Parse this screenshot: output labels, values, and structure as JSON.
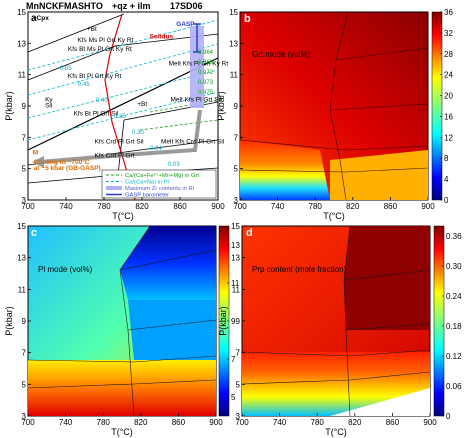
{
  "figure": {
    "header": {
      "system": "MnNCKFMASHTO",
      "phases": "+qz + ilm",
      "sample": "17SD06"
    }
  },
  "chart_data": [
    {
      "type": "diagram",
      "panel": "a",
      "xlabel": "T(°C)",
      "ylabel": "P(kbar)",
      "xlim": [
        700,
        900
      ],
      "ylim": [
        3,
        15
      ],
      "xticks": [
        "700",
        "740",
        "780",
        "820",
        "860",
        "900"
      ],
      "yticks": [
        "3",
        "5",
        "7",
        "9",
        "11",
        "13",
        "15"
      ],
      "field_labels": [
        {
          "text": "Kfs Ms Pl Grt Ky Rt",
          "x": 752,
          "y": 13.1
        },
        {
          "text": "Kfs Bt Ms Pl Grt Ky Rt",
          "x": 742,
          "y": 12.5
        },
        {
          "text": "Kfs Bt Pl Grt Ky Rt",
          "x": 742,
          "y": 10.8
        },
        {
          "text": "Kfs Bt Pl Grt Sil",
          "x": 748,
          "y": 8.4
        },
        {
          "text": "Melt Kfs Pl Grt Ky Rt",
          "x": 848,
          "y": 11.6
        },
        {
          "text": "Melt Kfs Pl Grt Sil",
          "x": 850,
          "y": 9.3
        },
        {
          "text": "Melt Kfs Crd Pl Grt Sil",
          "x": 840,
          "y": 6.6
        },
        {
          "text": "Kfs Crd Pl Grt Sil",
          "x": 770,
          "y": 6.6
        },
        {
          "text": "Kfs Crd Pl Grt",
          "x": 770,
          "y": 5.7
        },
        {
          "text": "+Bt",
          "x": 762,
          "y": 13.8
        },
        {
          "text": "+Bt",
          "x": 815,
          "y": 9.0
        },
        {
          "text": "Ky",
          "x": 718,
          "y": 9.3
        },
        {
          "text": "Sil",
          "x": 718,
          "y": 8.9
        }
      ],
      "annotations": [
        {
          "text": "+Cpx",
          "x": 705,
          "y": 14.5
        },
        {
          "text": "Solidus",
          "x": 828,
          "y": 13.3
        },
        {
          "text": "GASP",
          "x": 856,
          "y": 14.1
        },
        {
          "text": "M",
          "x": 705,
          "y": 5.9
        },
        {
          "text": "Cooling to ~700°C",
          "x": 706,
          "y": 5.3
        },
        {
          "text": "at ~5 kbar (GB-GASP)",
          "x": 706,
          "y": 4.9
        }
      ],
      "isopleth_labels": [
        "0.05",
        "0.45",
        "0.40",
        "0.35",
        "0.30",
        "0.04",
        "0.03",
        "0.964",
        "0.968",
        "0.972",
        "0.973",
        "0.975"
      ],
      "legend": [
        {
          "label": "Ca/(Ca+Fe²⁺+Mn+Mg) in Grt",
          "style": "green-dashed"
        },
        {
          "label": "Ca/(Ca+Na) in Pl",
          "style": "cyan-dashed"
        },
        {
          "label": "Maximum Zr contents in Rt",
          "style": "lavender-band"
        },
        {
          "label": "GASP barometer",
          "style": "blue-errorbar"
        }
      ]
    },
    {
      "type": "heatmap",
      "panel": "b",
      "title": "Grt mode (vol%)",
      "xlabel": "T(°C)",
      "ylabel": "P(kbar)",
      "xlim": [
        700,
        900
      ],
      "ylim": [
        3,
        15
      ],
      "xticks": [
        "700",
        "740",
        "780",
        "820",
        "860",
        "900"
      ],
      "yticks": [
        "3",
        "5",
        "7",
        "9",
        "11",
        "13",
        "15"
      ],
      "colorbar": {
        "min": 0,
        "max": 36,
        "ticks": [
          "0",
          "4",
          "8",
          "12",
          "16",
          "20",
          "24",
          "28",
          "32",
          "36"
        ]
      }
    },
    {
      "type": "heatmap",
      "panel": "c",
      "title": "Pl mode (vol%)",
      "xlabel": "T(°C)",
      "ylabel": "P(kbar)",
      "xlim": [
        700,
        900
      ],
      "ylim": [
        3,
        15
      ],
      "xticks": [
        "700",
        "740",
        "780",
        "820",
        "860",
        "900"
      ],
      "yticks": [
        "3",
        "5",
        "7",
        "9",
        "11",
        "13",
        "15"
      ],
      "colorbar": {
        "min": 4,
        "max": 14,
        "ticks": [
          "5",
          "7",
          "9",
          "11",
          "13"
        ]
      }
    },
    {
      "type": "heatmap",
      "panel": "d",
      "title": "Prp content (mole fraction)",
      "xlabel": "T(°C)",
      "ylabel": "P(kbar)",
      "xlim": [
        700,
        900
      ],
      "ylim": [
        3,
        15
      ],
      "xticks": [
        "700",
        "740",
        "780",
        "820",
        "860",
        "900"
      ],
      "yticks": [
        "3",
        "5",
        "7",
        "9",
        "11",
        "13",
        "15"
      ],
      "colorbar": {
        "min": 0,
        "max": 0.38,
        "ticks": [
          "0",
          "0.06",
          "0.12",
          "0.18",
          "0.24",
          "0.30",
          "0.36"
        ]
      }
    }
  ]
}
